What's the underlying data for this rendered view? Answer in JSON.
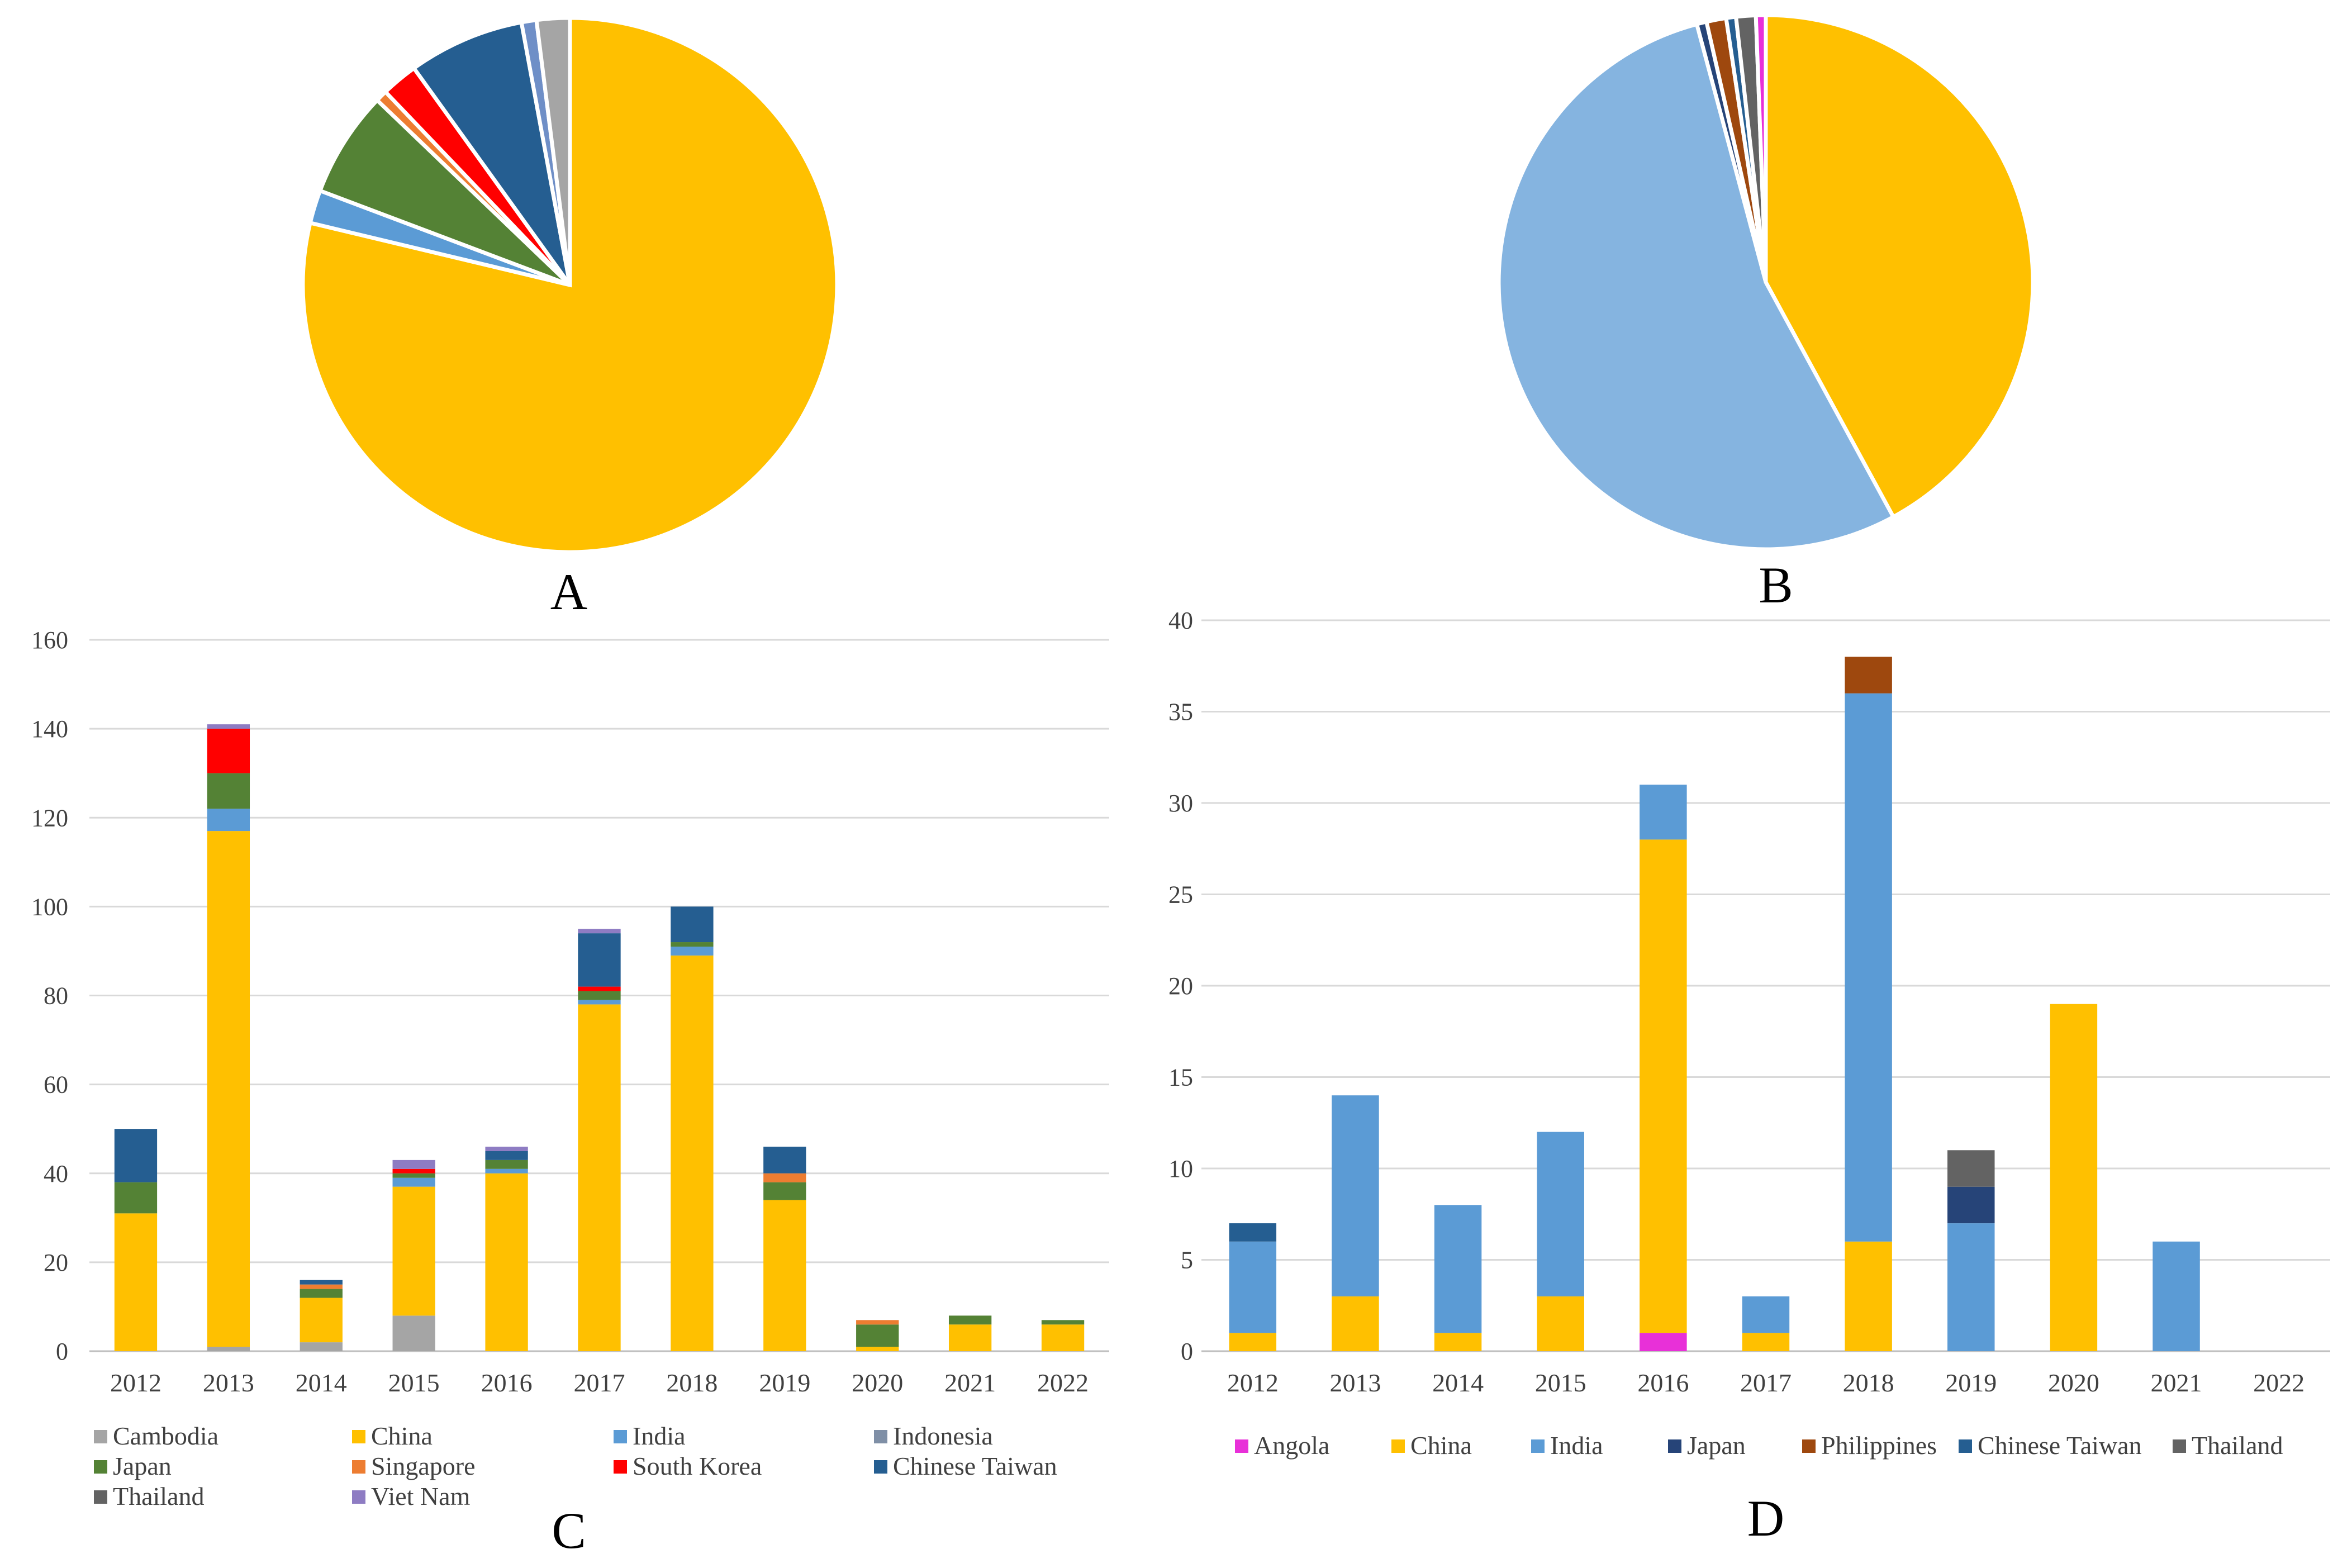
{
  "panels": {
    "a_label": "A",
    "b_label": "B",
    "c_label": "C",
    "d_label": "D"
  },
  "chart_data": [
    {
      "panel": "A",
      "type": "pie",
      "title": "",
      "slices": [
        {
          "name": "China",
          "value": 78.5,
          "color": "#FFC000"
        },
        {
          "name": "India",
          "value": 2.0,
          "color": "#5B9BD5"
        },
        {
          "name": "Japan",
          "value": 6.4,
          "color": "#548235"
        },
        {
          "name": "Singapore",
          "value": 0.7,
          "color": "#ED7D31"
        },
        {
          "name": "South Korea",
          "value": 2.2,
          "color": "#FF0000"
        },
        {
          "name": "Chinese Taiwan",
          "value": 7.0,
          "color": "#255E91"
        },
        {
          "name": "Viet Nam",
          "value": 0.9,
          "color": "#6F8FC7"
        },
        {
          "name": "Cambodia",
          "value": 2.0,
          "color": "#A5A5A5"
        }
      ]
    },
    {
      "panel": "B",
      "type": "pie",
      "title": "",
      "slices": [
        {
          "name": "China",
          "value": 42.5,
          "color": "#FFC000"
        },
        {
          "name": "India",
          "value": 54.3,
          "color": "#85B4E0"
        },
        {
          "name": "Japan",
          "value": 0.6,
          "color": "#264478"
        },
        {
          "name": "Philippines",
          "value": 1.2,
          "color": "#9E480E"
        },
        {
          "name": "Chinese Taiwan",
          "value": 0.6,
          "color": "#255E91"
        },
        {
          "name": "Thailand",
          "value": 1.2,
          "color": "#636363"
        },
        {
          "name": "Angola",
          "value": 0.6,
          "color": "#E830D8"
        }
      ]
    },
    {
      "panel": "C",
      "type": "bar",
      "stacked": true,
      "categories": [
        "2012",
        "2013",
        "2014",
        "2015",
        "2016",
        "2017",
        "2018",
        "2019",
        "2020",
        "2021",
        "2022"
      ],
      "ylim": [
        0,
        160
      ],
      "yticks": [
        0,
        20,
        40,
        60,
        80,
        100,
        120,
        140,
        160
      ],
      "grid": true,
      "legend_position": "bottom",
      "legend_order": [
        "Cambodia",
        "China",
        "India",
        "Indonesia",
        "Japan",
        "Singapore",
        "South Korea",
        "Chinese Taiwan",
        "Thailand",
        "Viet Nam"
      ],
      "series": [
        {
          "name": "Cambodia",
          "color": "#A5A5A5",
          "values": [
            0,
            1,
            2,
            8,
            0,
            0,
            0,
            0,
            0,
            0,
            0
          ]
        },
        {
          "name": "China",
          "color": "#FFC000",
          "values": [
            31,
            116,
            10,
            29,
            40,
            78,
            89,
            34,
            1,
            6,
            6
          ]
        },
        {
          "name": "India",
          "color": "#5B9BD5",
          "values": [
            0,
            5,
            0,
            2,
            1,
            1,
            2,
            0,
            0,
            0,
            0
          ]
        },
        {
          "name": "Indonesia",
          "color": "#7F8FA6",
          "values": [
            0,
            0,
            0,
            0,
            0,
            0,
            0,
            0,
            0,
            0,
            0
          ]
        },
        {
          "name": "Japan",
          "color": "#548235",
          "values": [
            7,
            8,
            2,
            1,
            2,
            2,
            1,
            4,
            5,
            2,
            1
          ]
        },
        {
          "name": "Singapore",
          "color": "#ED7D31",
          "values": [
            0,
            0,
            1,
            0,
            0,
            0,
            0,
            2,
            1,
            0,
            0
          ]
        },
        {
          "name": "South Korea",
          "color": "#FF0000",
          "values": [
            0,
            10,
            0,
            1,
            0,
            1,
            0,
            0,
            0,
            0,
            0
          ]
        },
        {
          "name": "Chinese Taiwan",
          "color": "#255E91",
          "values": [
            12,
            0,
            1,
            0,
            2,
            12,
            8,
            6,
            0,
            0,
            0
          ]
        },
        {
          "name": "Thailand",
          "color": "#636363",
          "values": [
            0,
            0,
            0,
            0,
            0,
            0,
            0,
            0,
            0,
            0,
            0
          ]
        },
        {
          "name": "Viet Nam",
          "color": "#8E7CC3",
          "values": [
            0,
            1,
            0,
            2,
            1,
            1,
            0,
            0,
            0,
            0,
            0
          ]
        }
      ]
    },
    {
      "panel": "D",
      "type": "bar",
      "stacked": true,
      "categories": [
        "2012",
        "2013",
        "2014",
        "2015",
        "2016",
        "2017",
        "2018",
        "2019",
        "2020",
        "2021",
        "2022"
      ],
      "ylim": [
        0,
        40
      ],
      "yticks": [
        0,
        5,
        10,
        15,
        20,
        25,
        30,
        35,
        40
      ],
      "grid": true,
      "legend_position": "bottom",
      "legend_order": [
        "Angola",
        "China",
        "India",
        "Japan",
        "Philippines",
        "Chinese Taiwan",
        "Thailand"
      ],
      "series": [
        {
          "name": "Angola",
          "color": "#E830D8",
          "values": [
            0,
            0,
            0,
            0,
            1,
            0,
            0,
            0,
            0,
            0,
            0
          ]
        },
        {
          "name": "China",
          "color": "#FFC000",
          "values": [
            1,
            3,
            1,
            3,
            27,
            1,
            6,
            0,
            19,
            0,
            0
          ]
        },
        {
          "name": "India",
          "color": "#5B9BD5",
          "values": [
            5,
            11,
            7,
            9,
            3,
            2,
            30,
            7,
            0,
            6,
            0
          ]
        },
        {
          "name": "Japan",
          "color": "#264478",
          "values": [
            0,
            0,
            0,
            0,
            0,
            0,
            0,
            2,
            0,
            0,
            0
          ]
        },
        {
          "name": "Philippines",
          "color": "#9E480E",
          "values": [
            0,
            0,
            0,
            0,
            0,
            0,
            2,
            0,
            0,
            0,
            0
          ]
        },
        {
          "name": "Chinese Taiwan",
          "color": "#255E91",
          "values": [
            1,
            0,
            0,
            0,
            0,
            0,
            0,
            0,
            0,
            0,
            0
          ]
        },
        {
          "name": "Thailand",
          "color": "#636363",
          "values": [
            0,
            0,
            0,
            0,
            0,
            0,
            0,
            2,
            0,
            0,
            0
          ]
        }
      ]
    }
  ]
}
